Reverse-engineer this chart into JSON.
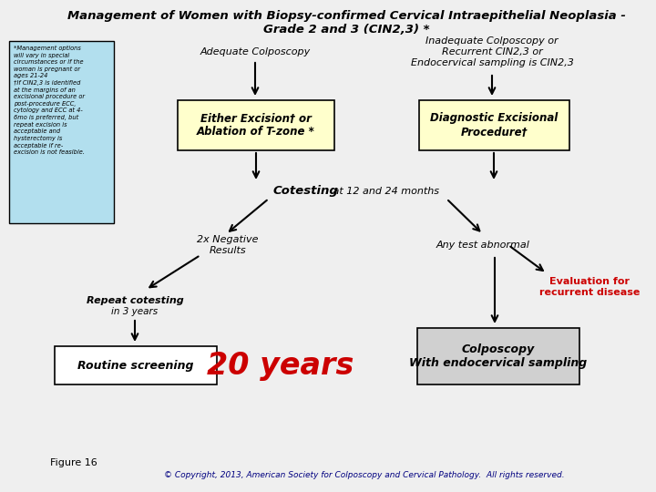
{
  "title_line1": "Management of Women with Biopsy-confirmed Cervical Intraepithelial Neoplasia -",
  "title_line2": "Grade 2 and 3 (CIN2,3) *",
  "bg_color": "#efefef",
  "sidebar_text": "*Management options\nwill vary in special\ncircumstances or if the\nwoman is pregnant or\nages 21-24\n†If CIN2,3 is identified\nat the margins of an\nexcisional procedure or\npost-procedure ECC,\ncytology and ECC at 4-\n6mo is preferred, but\nrepeat excision is\nacceptable and\nhysterectomy is\nacceptable if re-\nexcision is not feasible.",
  "sidebar_box_color": "#b2dfee",
  "box1_text": "Either Excision† or\nAblation of T-zone *",
  "box1_color": "#ffffcc",
  "box2_text": "Diagnostic Excisional\nProcedure†",
  "box2_color": "#ffffcc",
  "box3_text": "Routine screening",
  "box3_color": "#ffffff",
  "box4_text": "Colposcopy\nWith endocervical sampling",
  "box4_color": "#d0d0d0",
  "label_adequate": "Adequate Colposcopy",
  "label_inadequate": "Inadequate Colposcopy or\nRecurrent CIN2,3 or\nEndocervical sampling is CIN2,3",
  "label_cotesting": "Cotesting",
  "label_cotesting_sub": " at 12 and 24 months",
  "label_2x_neg": "2x Negative\nResults",
  "label_any_test": "Any test abnormal",
  "label_repeat": "Repeat cotesting",
  "label_repeat_sub": "in 3 years",
  "label_20years": "20 years",
  "label_eval": "Evaluation for\nrecurrent disease",
  "figure_label": "Figure 16",
  "copyright": "© Copyright, 2013, American Society for Colposcopy and Cervical Pathology.  All rights reserved."
}
